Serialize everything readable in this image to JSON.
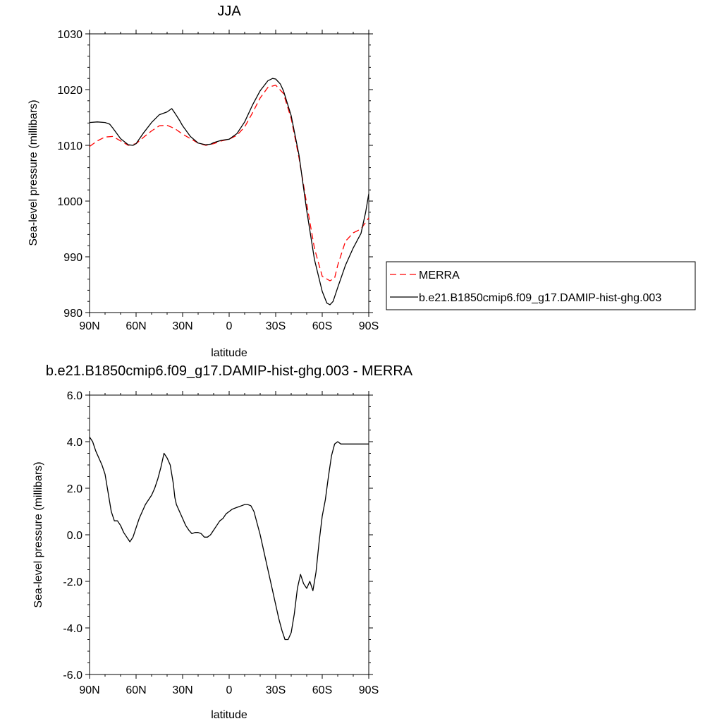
{
  "chart_data": [
    {
      "type": "line",
      "title": "JJA",
      "xlabel": "latitude",
      "ylabel": "Sea-level pressure (millibars)",
      "xlim": [
        90,
        -90
      ],
      "ylim": [
        980,
        1030
      ],
      "xticks": [
        90,
        60,
        30,
        0,
        -30,
        -60,
        -90
      ],
      "xtick_labels": [
        "90N",
        "60N",
        "30N",
        "0",
        "30S",
        "60S",
        "90S"
      ],
      "yticks": [
        980,
        990,
        1000,
        1010,
        1020,
        1030
      ],
      "ytick_labels": [
        "980",
        "990",
        "1000",
        "1010",
        "1020",
        "1030"
      ],
      "legend_position": "right",
      "series": [
        {
          "name": "MERRA",
          "color": "#ff0000",
          "style": "dashed",
          "x": [
            90,
            85,
            80,
            75,
            70,
            65,
            60,
            55,
            50,
            45,
            40,
            35,
            30,
            25,
            20,
            15,
            10,
            5,
            0,
            -5,
            -10,
            -15,
            -20,
            -25,
            -30,
            -35,
            -40,
            -45,
            -50,
            -55,
            -60,
            -65,
            -68,
            -70,
            -75,
            -80,
            -85,
            -90
          ],
          "y": [
            1009.8,
            1010.8,
            1011.5,
            1011.6,
            1010.8,
            1010.0,
            1010.3,
            1011.5,
            1012.6,
            1013.5,
            1013.6,
            1013.0,
            1012.0,
            1011.2,
            1010.4,
            1010.0,
            1010.3,
            1010.8,
            1011.1,
            1011.8,
            1013.3,
            1015.8,
            1018.5,
            1020.4,
            1020.8,
            1019.3,
            1014.8,
            1007.8,
            999.5,
            991.5,
            986.5,
            985.7,
            986.2,
            988.5,
            992.8,
            994.3,
            995.0,
            997.0
          ]
        },
        {
          "name": "b.e21.B1850cmip6.f09_g17.DAMIP-hist-ghg.003",
          "color": "#000000",
          "style": "solid",
          "x": [
            90,
            85,
            80,
            77,
            75,
            70,
            65,
            62,
            60,
            55,
            50,
            45,
            40,
            37,
            35,
            32,
            30,
            25,
            20,
            15,
            12,
            10,
            5,
            0,
            -5,
            -10,
            -15,
            -20,
            -25,
            -28,
            -30,
            -33,
            -35,
            -40,
            -45,
            -50,
            -55,
            -60,
            -63,
            -65,
            -67,
            -70,
            -75,
            -80,
            -85,
            -88,
            -90
          ],
          "y": [
            1014.1,
            1014.2,
            1014.1,
            1013.8,
            1013.1,
            1011.2,
            1010.1,
            1010.0,
            1010.3,
            1012.3,
            1014.1,
            1015.5,
            1016.0,
            1016.6,
            1015.8,
            1014.5,
            1013.5,
            1011.6,
            1010.4,
            1010.1,
            1010.2,
            1010.5,
            1010.9,
            1011.1,
            1012.1,
            1014.2,
            1017.2,
            1019.8,
            1021.6,
            1022.0,
            1021.9,
            1021.0,
            1019.8,
            1015.3,
            1008.3,
            998.3,
            989.5,
            983.8,
            981.7,
            981.4,
            982.0,
            984.5,
            988.5,
            991.6,
            994.2,
            998.0,
            1001.3
          ]
        }
      ]
    },
    {
      "type": "line",
      "title": "b.e21.B1850cmip6.f09_g17.DAMIP-hist-ghg.003 - MERRA",
      "xlabel": "latitude",
      "ylabel": "Sea-level pressure (millibars)",
      "xlim": [
        90,
        -90
      ],
      "ylim": [
        -6.0,
        6.0
      ],
      "xticks": [
        90,
        60,
        30,
        0,
        -30,
        -60,
        -90
      ],
      "xtick_labels": [
        "90N",
        "60N",
        "30N",
        "0",
        "30S",
        "60S",
        "90S"
      ],
      "yticks": [
        -6,
        -4,
        -2,
        0,
        2,
        4,
        6
      ],
      "ytick_labels": [
        "-6.0",
        "-4.0",
        "-2.0",
        "0.0",
        "2.0",
        "4.0",
        "6.0"
      ],
      "series": [
        {
          "color": "#000000",
          "style": "solid",
          "x": [
            90,
            88,
            86,
            84,
            82,
            80,
            78,
            76,
            74,
            72,
            70,
            68,
            66,
            64,
            62,
            60,
            58,
            56,
            54,
            52,
            50,
            48,
            46,
            44,
            42,
            40,
            38,
            36,
            35,
            34,
            32,
            30,
            28,
            26,
            24,
            22,
            20,
            18,
            16,
            14,
            12,
            10,
            8,
            6,
            4,
            2,
            0,
            -2,
            -4,
            -6,
            -8,
            -10,
            -12,
            -14,
            -16,
            -18,
            -20,
            -22,
            -24,
            -26,
            -28,
            -30,
            -32,
            -34,
            -36,
            -38,
            -40,
            -42,
            -44,
            -46,
            -48,
            -50,
            -52,
            -54,
            -56,
            -58,
            -60,
            -62,
            -64,
            -66,
            -68,
            -70,
            -72,
            -74,
            -76,
            -78,
            -80,
            -82,
            -84,
            -86,
            -88,
            -90
          ],
          "y": [
            4.2,
            4.0,
            3.6,
            3.3,
            3.0,
            2.6,
            1.8,
            1.0,
            0.6,
            0.6,
            0.4,
            0.1,
            -0.1,
            -0.3,
            -0.1,
            0.3,
            0.7,
            1.0,
            1.3,
            1.5,
            1.7,
            2.0,
            2.4,
            2.9,
            3.5,
            3.3,
            3.0,
            2.2,
            1.6,
            1.3,
            1.0,
            0.7,
            0.4,
            0.2,
            0.05,
            0.1,
            0.1,
            0.05,
            -0.1,
            -0.1,
            0.0,
            0.2,
            0.4,
            0.6,
            0.7,
            0.9,
            1.0,
            1.1,
            1.15,
            1.2,
            1.25,
            1.3,
            1.3,
            1.25,
            1.0,
            0.5,
            0.0,
            -0.6,
            -1.2,
            -1.8,
            -2.4,
            -3.0,
            -3.6,
            -4.1,
            -4.5,
            -4.5,
            -4.2,
            -3.4,
            -2.3,
            -1.7,
            -2.1,
            -2.3,
            -2.0,
            -2.4,
            -1.6,
            -0.3,
            0.8,
            1.5,
            2.5,
            3.4,
            3.9,
            4.0,
            3.9,
            3.9,
            3.9,
            3.9,
            3.9,
            3.9,
            3.9,
            3.9,
            3.9,
            3.9
          ]
        }
      ]
    }
  ]
}
